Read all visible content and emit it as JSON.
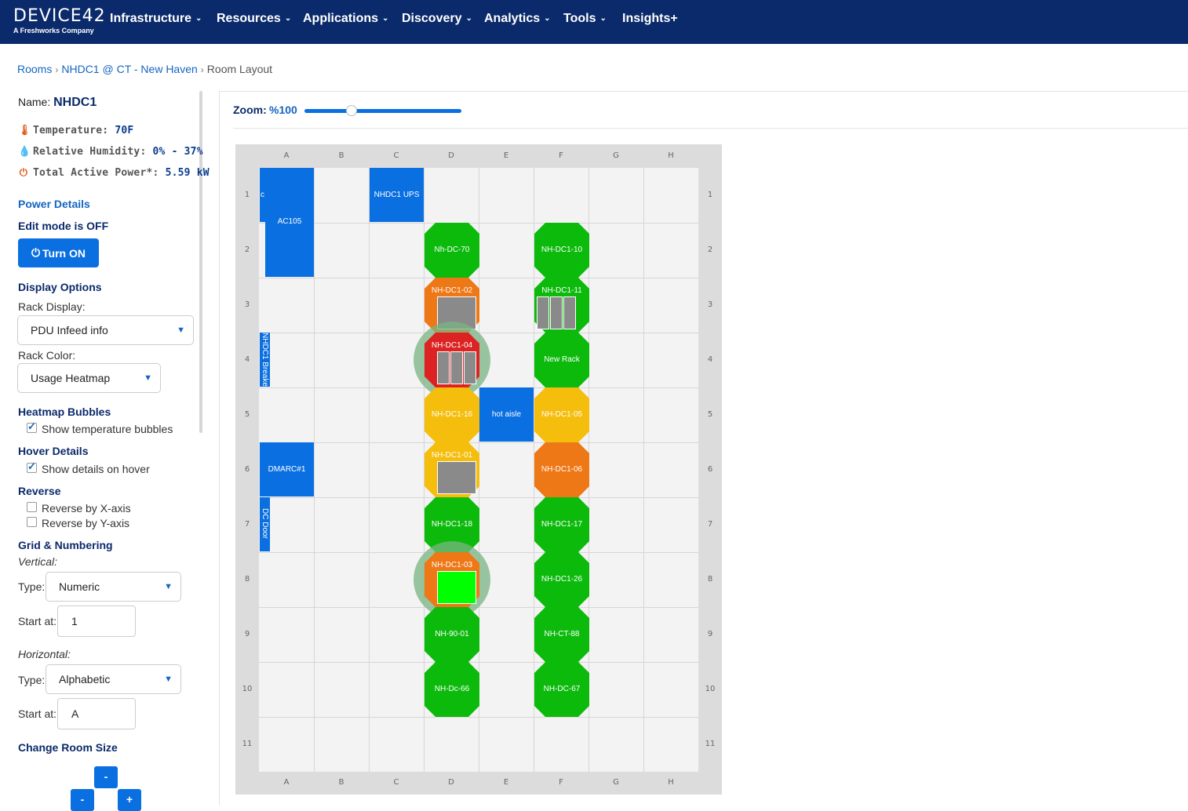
{
  "topnav": {
    "brand": "DEVICE42",
    "brand_sub": "A Freshworks Company",
    "items": [
      {
        "label": "Infrastructure",
        "chev": "⌄"
      },
      {
        "label": "Resources",
        "chev": "⌄"
      },
      {
        "label": "Applications",
        "chev": "⌄"
      },
      {
        "label": "Discovery",
        "chev": "⌄"
      },
      {
        "label": "Analytics",
        "chev": "⌄"
      },
      {
        "label": "Tools",
        "chev": "⌄"
      },
      {
        "label": "Insights+",
        "chev": ""
      }
    ]
  },
  "breadcrumb": {
    "rooms": "Rooms",
    "building": "NHDC1 @ CT - New Haven",
    "current": "Room Layout",
    "sep": "›"
  },
  "panel": {
    "name_label": "Name:",
    "name_value": "NHDC1",
    "temperature_label": "Temperature:",
    "temperature_value": "70F",
    "humidity_label": "Relative Humidity:",
    "humidity_value": "0% - 37%",
    "power_label": "Total Active Power*:",
    "power_value": "5.59 kW",
    "power_details": "Power Details",
    "edit_mode": "Edit mode is OFF",
    "turn_on": "Turn ON",
    "display_options": "Display Options",
    "rack_display_label": "Rack Display:",
    "rack_display_value": "PDU Infeed info",
    "rack_color_label": "Rack Color:",
    "rack_color_value": "Usage Heatmap",
    "heatmap_bubbles": "Heatmap Bubbles",
    "show_temp_bubbles": "Show temperature bubbles",
    "show_temp_bubbles_checked": true,
    "hover_details": "Hover Details",
    "show_details_hover": "Show details on hover",
    "show_details_hover_checked": true,
    "reverse": "Reverse",
    "reverse_x": "Reverse by X-axis",
    "reverse_y": "Reverse by Y-axis",
    "grid_numbering": "Grid & Numbering",
    "vertical": "Vertical:",
    "v_type_label": "Type:",
    "v_type_value": "Numeric",
    "v_start_label": "Start at:",
    "v_start_value": "1",
    "horizontal": "Horizontal:",
    "h_type_label": "Type:",
    "h_type_value": "Alphabetic",
    "h_start_label": "Start at:",
    "h_start_value": "A",
    "change_room_size": "Change Room Size",
    "size_minus": "-",
    "size_plus": "+"
  },
  "zoom": {
    "label": "Zoom:",
    "value": "%100",
    "level_fraction": 0.3
  },
  "grid": {
    "columns": [
      "A",
      "B",
      "C",
      "D",
      "E",
      "F",
      "G",
      "H"
    ],
    "rows": [
      "1",
      "2",
      "3",
      "4",
      "5",
      "6",
      "7",
      "8",
      "9",
      "10",
      "11"
    ]
  },
  "blocks": [
    {
      "id": "ac105",
      "label": "AC105"
    },
    {
      "id": "c-strip",
      "label": "c"
    },
    {
      "id": "ups",
      "label": "NHDC1 UPS"
    },
    {
      "id": "breaker",
      "label": "NHDC1 Breaker"
    },
    {
      "id": "hot-aisle",
      "label": "hot aisle"
    },
    {
      "id": "dmarc",
      "label": "DMARC#1"
    },
    {
      "id": "dc-door",
      "label": "DC Door"
    }
  ],
  "colors": {
    "green": "#0cba0c",
    "orange": "#ee7716",
    "yellow": "#f5bd0c",
    "red": "#dc2222",
    "blue": "#0a6fe0",
    "navy": "#0b2a6b"
  },
  "racks": [
    {
      "name": "Nh-DC-70",
      "col": 3,
      "row": 1,
      "color": "green"
    },
    {
      "name": "NH-DC1-10",
      "col": 5,
      "row": 1,
      "color": "green"
    },
    {
      "name": "NH-DC1-02",
      "col": 3,
      "row": 2,
      "color": "orange"
    },
    {
      "name": "NH-DC1-11",
      "col": 5,
      "row": 2,
      "color": "green"
    },
    {
      "name": "NH-DC1-04",
      "col": 3,
      "row": 3,
      "color": "red"
    },
    {
      "name": "New Rack",
      "col": 5,
      "row": 3,
      "color": "green"
    },
    {
      "name": "NH-DC1-16",
      "col": 3,
      "row": 4,
      "color": "yellow"
    },
    {
      "name": "NH-DC1-05",
      "col": 5,
      "row": 4,
      "color": "yellow"
    },
    {
      "name": "NH-DC1-01",
      "col": 3,
      "row": 5,
      "color": "yellow"
    },
    {
      "name": "NH-DC1-06",
      "col": 5,
      "row": 5,
      "color": "orange"
    },
    {
      "name": "NH-DC1-18",
      "col": 3,
      "row": 6,
      "color": "green"
    },
    {
      "name": "NH-DC1-17",
      "col": 5,
      "row": 6,
      "color": "green"
    },
    {
      "name": "NH-DC1-03",
      "col": 3,
      "row": 7,
      "color": "orange"
    },
    {
      "name": "NH-DC1-26",
      "col": 5,
      "row": 7,
      "color": "green"
    },
    {
      "name": "NH-90-01",
      "col": 3,
      "row": 8,
      "color": "green"
    },
    {
      "name": "NH-CT-88",
      "col": 5,
      "row": 8,
      "color": "green"
    },
    {
      "name": "NH-Dc-66",
      "col": 3,
      "row": 9,
      "color": "green"
    },
    {
      "name": "NH-DC-67",
      "col": 5,
      "row": 9,
      "color": "green"
    }
  ]
}
